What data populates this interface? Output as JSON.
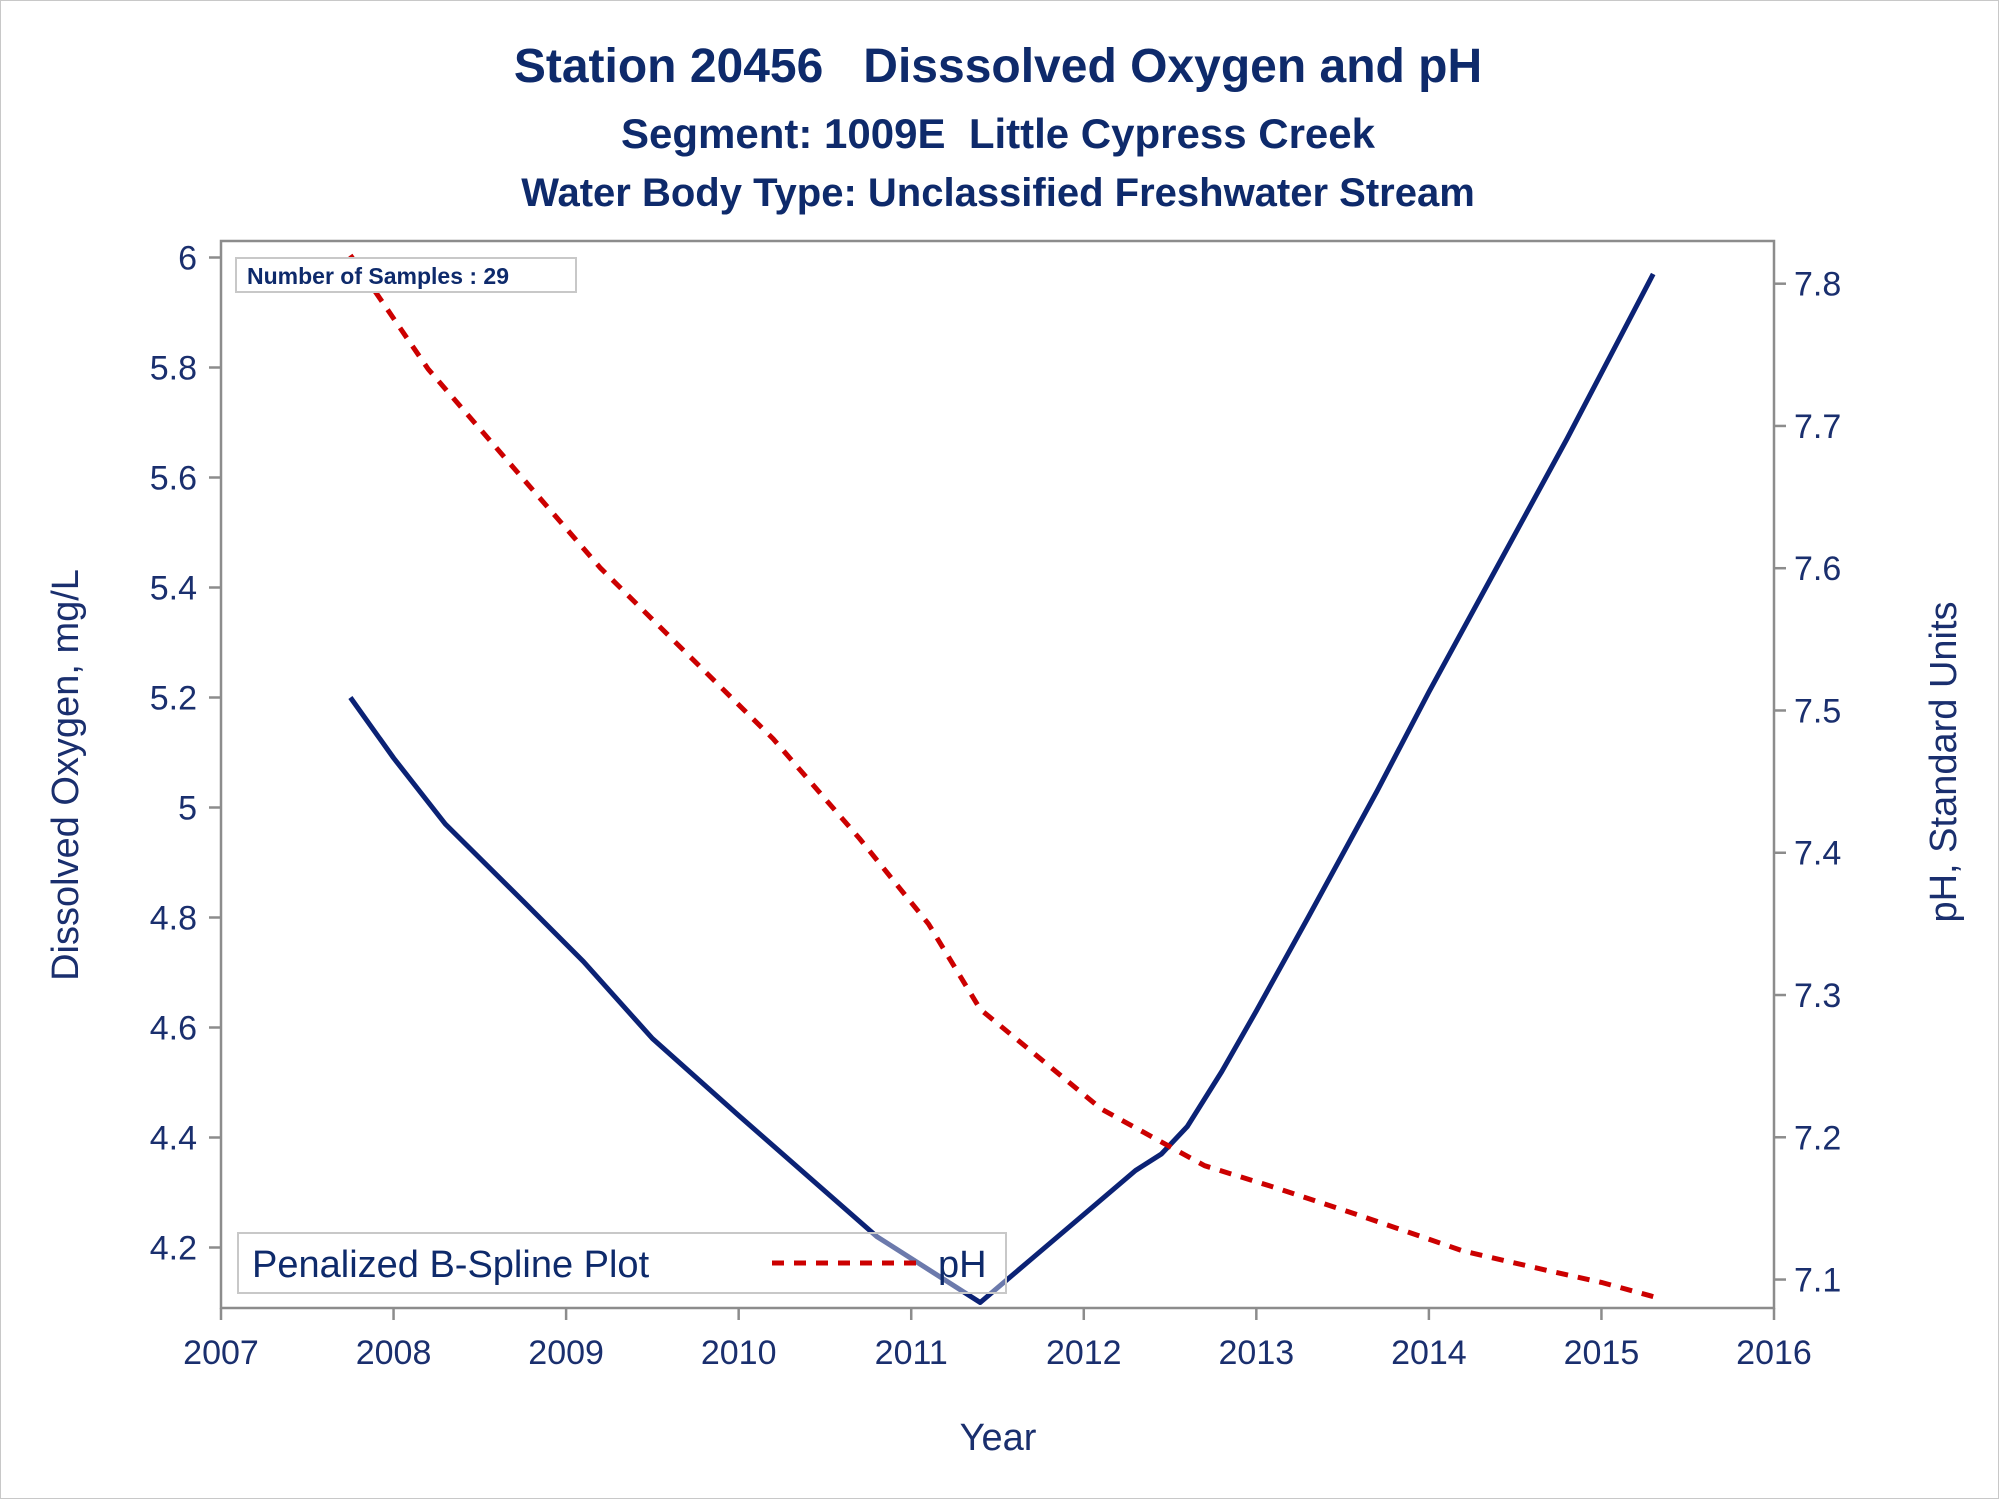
{
  "chart_data": {
    "type": "line",
    "title": "Station 20456   Disssolved Oxygen and pH",
    "subtitle": "Segment: 1009E  Little Cypress Creek",
    "subtitle2": "Water Body Type: Unclassified Freshwater Stream",
    "xlabel": "Year",
    "ylabel": "Dissolved Oxygen, mg/L",
    "y2label": "pH, Standard Units",
    "xlim": [
      2007,
      2016
    ],
    "ylim": [
      4.09,
      6.03
    ],
    "y2lim": [
      7.08,
      7.83
    ],
    "x_ticks": [
      "2007",
      "2008",
      "2009",
      "2010",
      "2011",
      "2012",
      "2013",
      "2014",
      "2015",
      "2016"
    ],
    "y_ticks": [
      "4.2",
      "4.4",
      "4.6",
      "4.8",
      "5",
      "5.2",
      "5.4",
      "5.6",
      "5.8",
      "6"
    ],
    "y2_ticks": [
      "7.1",
      "7.2",
      "7.3",
      "7.4",
      "7.5",
      "7.6",
      "7.7",
      "7.8"
    ],
    "inset_text": "Number of Samples : 29",
    "legend": {
      "title": "Penalized B-Spline Plot",
      "placement": "bottom-left",
      "entries": [
        "pH"
      ]
    },
    "colors": {
      "oxygen": "#0b2275",
      "ph": "#cc0000",
      "text": "#0e2a6b",
      "axis": "#8c8c8c"
    },
    "series": [
      {
        "name": "",
        "axis": "left",
        "style": "solid",
        "x": [
          2007.75,
          2008.0,
          2008.3,
          2008.75,
          2009.1,
          2009.5,
          2010.0,
          2010.4,
          2010.8,
          2011.1,
          2011.4,
          2011.7,
          2012.0,
          2012.3,
          2012.45,
          2012.6,
          2012.8,
          2013.0,
          2013.3,
          2013.7,
          2014.0,
          2014.4,
          2014.8,
          2015.1,
          2015.3
        ],
        "values": [
          5.2,
          5.09,
          4.97,
          4.83,
          4.72,
          4.58,
          4.44,
          4.33,
          4.22,
          4.16,
          4.1,
          4.18,
          4.26,
          4.34,
          4.37,
          4.42,
          4.52,
          4.63,
          4.8,
          5.03,
          5.21,
          5.44,
          5.67,
          5.85,
          5.97
        ]
      },
      {
        "name": "pH",
        "axis": "right",
        "style": "dashed",
        "x": [
          2007.75,
          2008.2,
          2008.7,
          2009.2,
          2009.7,
          2010.2,
          2010.7,
          2011.1,
          2011.4,
          2011.8,
          2012.1,
          2012.4,
          2012.7,
          2013.1,
          2013.6,
          2014.2,
          2014.7,
          2015.0,
          2015.3
        ],
        "values": [
          7.82,
          7.74,
          7.67,
          7.6,
          7.54,
          7.48,
          7.41,
          7.35,
          7.29,
          7.25,
          7.22,
          7.2,
          7.18,
          7.165,
          7.145,
          7.12,
          7.106,
          7.098,
          7.088
        ]
      }
    ]
  }
}
